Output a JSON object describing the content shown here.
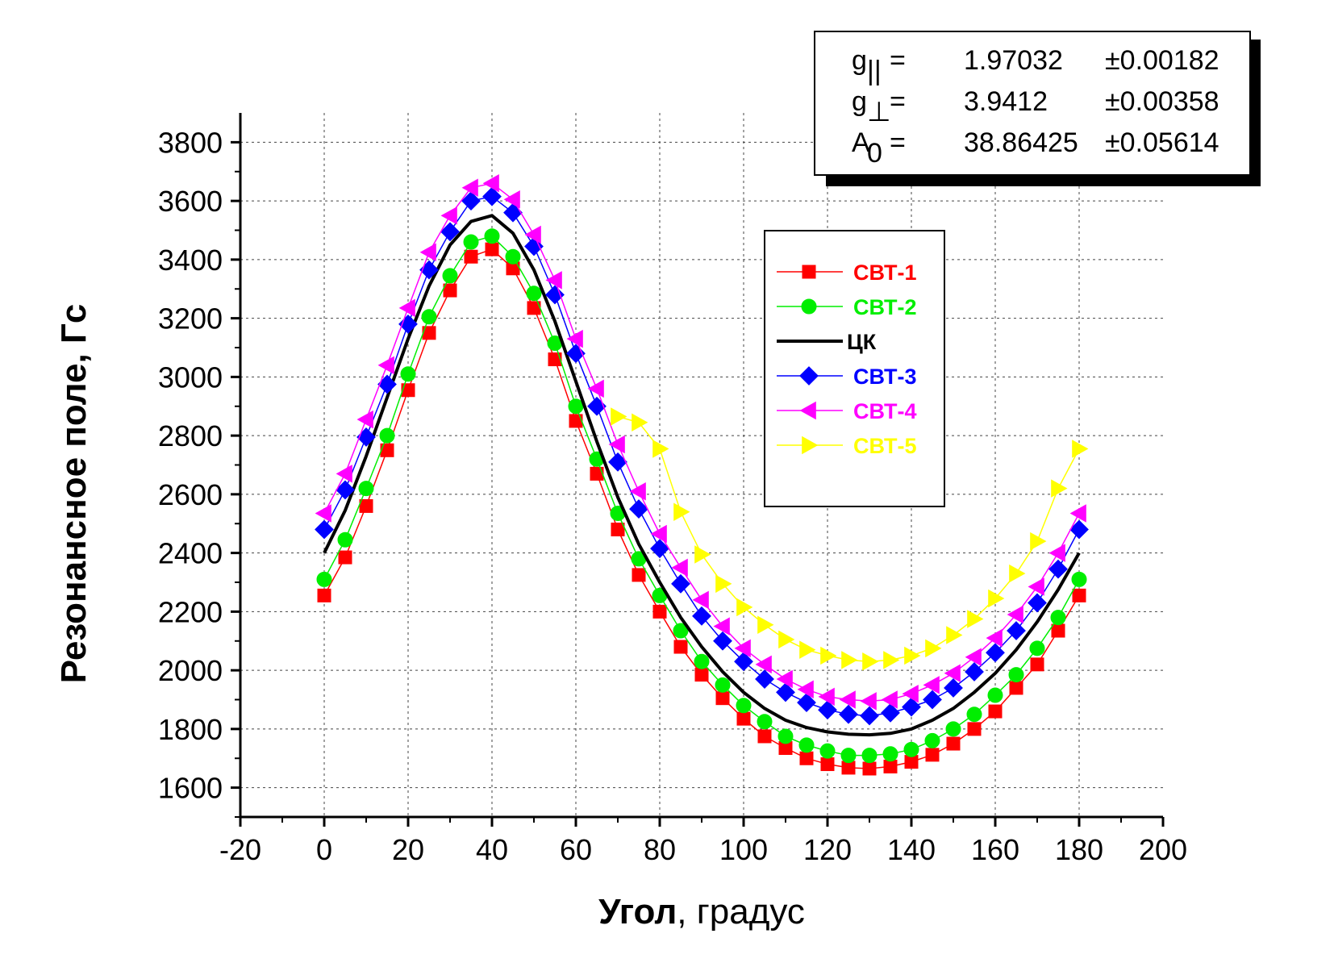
{
  "chart_data": {
    "type": "line",
    "xlabel_bold": "Угол",
    "xlabel_rest": ", градус",
    "ylabel": "Резонансное поле, Гс",
    "xlim": [
      -20,
      200
    ],
    "ylim": [
      1500,
      3900
    ],
    "x_ticks": [
      "-20",
      "0",
      "20",
      "40",
      "60",
      "80",
      "100",
      "120",
      "140",
      "160",
      "180",
      "200"
    ],
    "x_tick_values": [
      -20,
      0,
      20,
      40,
      60,
      80,
      100,
      120,
      140,
      160,
      180,
      200
    ],
    "y_ticks": [
      "1600",
      "1800",
      "2000",
      "2200",
      "2400",
      "2600",
      "2800",
      "3000",
      "3200",
      "3400",
      "3600",
      "3800"
    ],
    "y_tick_values": [
      1600,
      1800,
      2000,
      2200,
      2400,
      2600,
      2800,
      3000,
      3200,
      3400,
      3600,
      3800
    ],
    "grid": true,
    "legend_position": "center-right",
    "series": [
      {
        "name": "СВТ-1",
        "marker": "square",
        "color": "#ff0000",
        "x": [
          0,
          5,
          10,
          15,
          20,
          25,
          30,
          35,
          40,
          45,
          50,
          55,
          60,
          65,
          70,
          75,
          80,
          85,
          90,
          95,
          100,
          105,
          110,
          115,
          120,
          125,
          130,
          135,
          140,
          145,
          150,
          155,
          160,
          165,
          170,
          175,
          180
        ],
        "y": [
          2255,
          2385,
          2560,
          2750,
          2955,
          3150,
          3295,
          3410,
          3435,
          3370,
          3235,
          3060,
          2850,
          2670,
          2480,
          2325,
          2200,
          2080,
          1985,
          1905,
          1835,
          1775,
          1735,
          1700,
          1680,
          1668,
          1665,
          1672,
          1688,
          1712,
          1750,
          1800,
          1860,
          1940,
          2020,
          2135,
          2255
        ]
      },
      {
        "name": "СВТ-2",
        "marker": "circle",
        "color": "#00ee00",
        "x": [
          0,
          5,
          10,
          15,
          20,
          25,
          30,
          35,
          40,
          45,
          50,
          55,
          60,
          65,
          70,
          75,
          80,
          85,
          90,
          95,
          100,
          105,
          110,
          115,
          120,
          125,
          130,
          135,
          140,
          145,
          150,
          155,
          160,
          165,
          170,
          175,
          180
        ],
        "y": [
          2310,
          2445,
          2620,
          2800,
          3010,
          3205,
          3345,
          3460,
          3480,
          3410,
          3285,
          3115,
          2900,
          2720,
          2535,
          2380,
          2255,
          2135,
          2030,
          1950,
          1880,
          1825,
          1775,
          1745,
          1725,
          1710,
          1710,
          1715,
          1730,
          1760,
          1800,
          1850,
          1915,
          1985,
          2075,
          2180,
          2310
        ]
      },
      {
        "name": "ЦК",
        "marker": "none",
        "color": "#000000",
        "x": [
          0,
          5,
          10,
          15,
          20,
          25,
          30,
          35,
          40,
          45,
          50,
          55,
          60,
          65,
          70,
          75,
          80,
          85,
          90,
          95,
          100,
          105,
          110,
          115,
          120,
          125,
          130,
          135,
          140,
          145,
          150,
          155,
          160,
          165,
          170,
          175,
          180
        ],
        "y": [
          2400,
          2545,
          2730,
          2930,
          3130,
          3310,
          3450,
          3530,
          3550,
          3490,
          3365,
          3190,
          2985,
          2780,
          2590,
          2430,
          2300,
          2180,
          2080,
          1995,
          1925,
          1870,
          1830,
          1805,
          1790,
          1782,
          1780,
          1785,
          1800,
          1830,
          1870,
          1925,
          1990,
          2070,
          2165,
          2275,
          2400
        ]
      },
      {
        "name": "СВТ-3",
        "marker": "diamond",
        "color": "#0000ff",
        "x": [
          0,
          5,
          10,
          15,
          20,
          25,
          30,
          35,
          40,
          45,
          50,
          55,
          60,
          65,
          70,
          75,
          80,
          85,
          90,
          95,
          100,
          105,
          110,
          115,
          120,
          125,
          130,
          135,
          140,
          145,
          150,
          155,
          160,
          165,
          170,
          175,
          180
        ],
        "y": [
          2480,
          2615,
          2795,
          2975,
          3180,
          3365,
          3495,
          3600,
          3615,
          3560,
          3445,
          3280,
          3080,
          2900,
          2710,
          2550,
          2415,
          2295,
          2185,
          2100,
          2030,
          1970,
          1925,
          1890,
          1865,
          1850,
          1845,
          1855,
          1875,
          1900,
          1940,
          1995,
          2060,
          2135,
          2230,
          2345,
          2480
        ]
      },
      {
        "name": "СВТ-4",
        "marker": "triangle-left",
        "color": "#ff00ff",
        "x": [
          0,
          5,
          10,
          15,
          20,
          25,
          30,
          35,
          40,
          45,
          50,
          55,
          60,
          65,
          70,
          75,
          80,
          85,
          90,
          95,
          100,
          105,
          110,
          115,
          120,
          125,
          130,
          135,
          140,
          145,
          150,
          155,
          160,
          165,
          170,
          175,
          180
        ],
        "y": [
          2535,
          2670,
          2855,
          3040,
          3235,
          3425,
          3550,
          3645,
          3660,
          3605,
          3485,
          3330,
          3130,
          2960,
          2770,
          2610,
          2465,
          2350,
          2240,
          2150,
          2075,
          2020,
          1970,
          1935,
          1910,
          1900,
          1895,
          1900,
          1920,
          1950,
          1990,
          2045,
          2110,
          2190,
          2285,
          2400,
          2535
        ]
      },
      {
        "name": "СВТ-5",
        "marker": "triangle-right",
        "color": "#ffff00",
        "x": [
          70,
          75,
          80,
          85,
          90,
          95,
          100,
          105,
          110,
          115,
          120,
          125,
          130,
          135,
          140,
          145,
          150,
          155,
          160,
          165,
          170,
          175,
          180
        ],
        "y": [
          2865,
          2845,
          2755,
          2540,
          2395,
          2295,
          2215,
          2155,
          2105,
          2070,
          2050,
          2035,
          2030,
          2035,
          2050,
          2075,
          2120,
          2175,
          2245,
          2330,
          2440,
          2620,
          2755
        ]
      }
    ]
  },
  "params": [
    {
      "label": "g",
      "sub": "||",
      "eq": "=",
      "value": "1.97032",
      "err": "±0.00182"
    },
    {
      "label": "g",
      "sub": "⊥",
      "eq": "=",
      "value": "3.9412",
      "err": "±0.00358"
    },
    {
      "label": "A",
      "sub": "0",
      "eq": "=",
      "value": "38.86425",
      "err": "±0.05614"
    }
  ]
}
